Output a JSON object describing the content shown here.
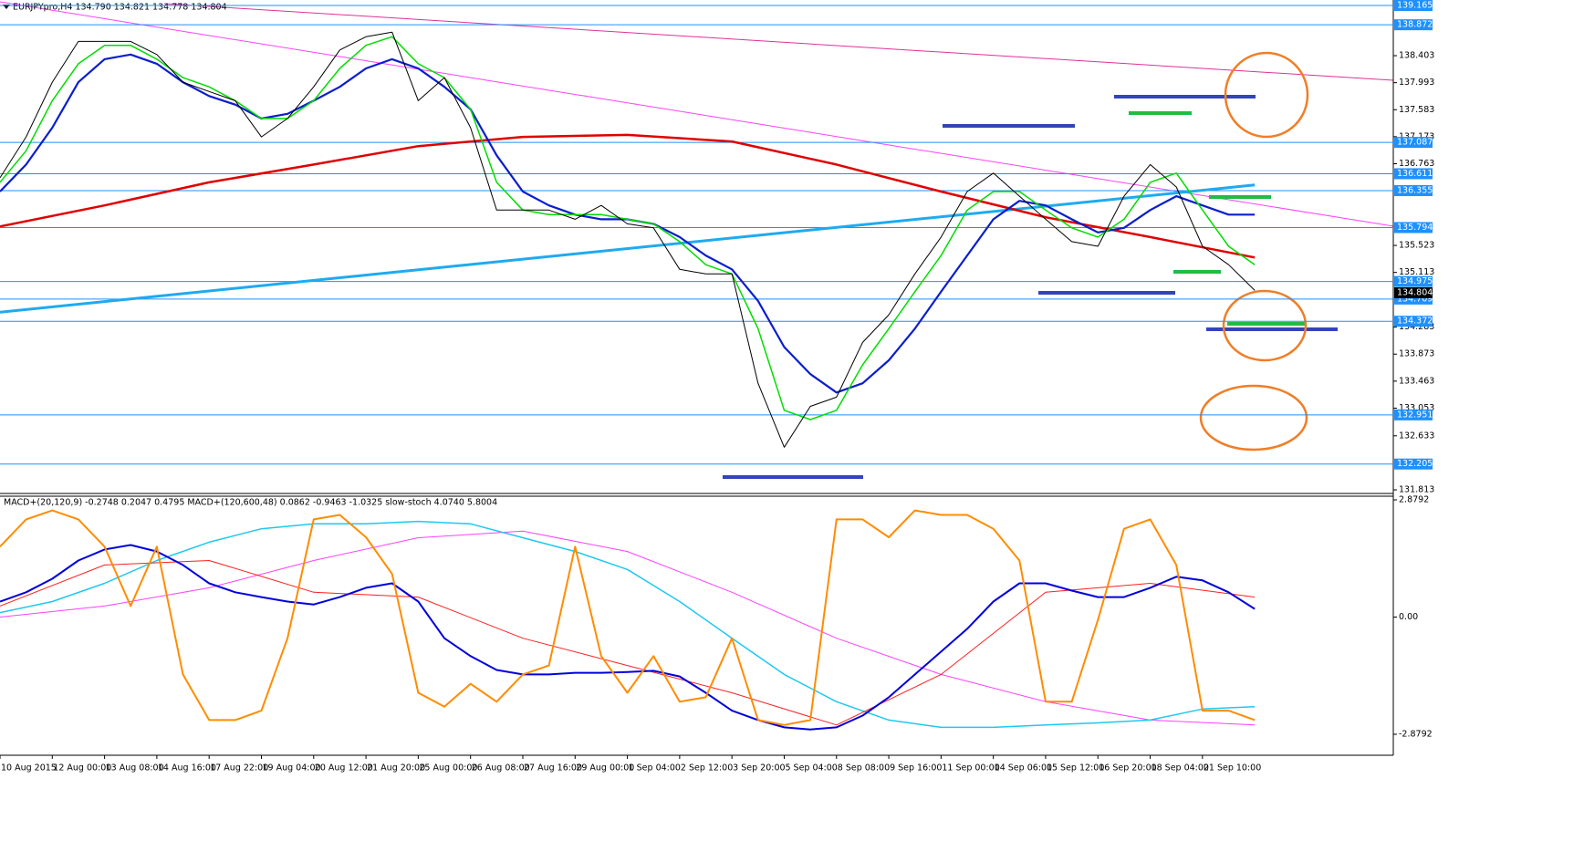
{
  "chart_data": [
    {
      "type": "line",
      "title": "EURJPYpro,H4  134.790 134.821 134.778 134.804",
      "xlim": [
        0,
        26.65
      ],
      "ylim": [
        131.758,
        139.248
      ],
      "yticks": [
        138.403,
        137.993,
        137.583,
        137.173,
        136.763,
        135.523,
        135.113,
        134.283,
        133.873,
        133.463,
        133.053,
        132.633,
        131.813
      ],
      "levels": {
        "color": "#1e90ff",
        "values": [
          139.165,
          138.872,
          137.087,
          136.611,
          136.355,
          135.794,
          134.975,
          134.709,
          134.372,
          132.951,
          132.205
        ]
      },
      "last_price": 134.804,
      "series": [
        {
          "color": "#1eaaf0",
          "x": [
            0,
            24
          ],
          "values": [
            134.51,
            136.44
          ]
        },
        {
          "color": "#e00000",
          "x": [
            0,
            2,
            4,
            6,
            8,
            10,
            12,
            14,
            16,
            18,
            20,
            22,
            24
          ],
          "values": [
            135.81,
            136.13,
            136.48,
            136.75,
            137.03,
            137.17,
            137.2,
            137.1,
            136.75,
            136.34,
            135.95,
            135.65,
            135.34
          ]
        },
        {
          "color": "#0a1ecc",
          "x": [
            0,
            0.5,
            1,
            1.5,
            2,
            2.5,
            3,
            3.5,
            4,
            4.5,
            5,
            5.5,
            6,
            6.5,
            7,
            7.5,
            8,
            8.5,
            9,
            9.5,
            10,
            10.5,
            11,
            11.5,
            12,
            12.5,
            13,
            13.5,
            14,
            14.5,
            15,
            15.5,
            16,
            16.5,
            17,
            17.5,
            18,
            18.5,
            19,
            19.5,
            20,
            20.5,
            21,
            21.5,
            22,
            22.5,
            23,
            23.5,
            24
          ],
          "values": [
            136.34,
            136.75,
            137.31,
            138.0,
            138.35,
            138.42,
            138.28,
            138.0,
            137.79,
            137.66,
            137.45,
            137.52,
            137.72,
            137.93,
            138.21,
            138.35,
            138.21,
            137.93,
            137.59,
            136.89,
            136.34,
            136.13,
            135.99,
            135.92,
            135.92,
            135.85,
            135.65,
            135.37,
            135.16,
            134.68,
            133.98,
            133.57,
            133.29,
            133.43,
            133.78,
            134.26,
            134.82,
            135.37,
            135.92,
            136.2,
            136.13,
            135.92,
            135.72,
            135.79,
            136.06,
            136.27,
            136.13,
            135.99,
            135.99
          ]
        },
        {
          "color": "#00dd00",
          "x": [
            0,
            0.5,
            1,
            1.5,
            2,
            2.5,
            3,
            3.5,
            4,
            4.5,
            5,
            5.5,
            6,
            6.5,
            7,
            7.5,
            8,
            8.5,
            9,
            9.5,
            10,
            10.5,
            11,
            11.5,
            12,
            12.5,
            13,
            13.5,
            14,
            14.5,
            15,
            15.5,
            16,
            16.5,
            17,
            17.5,
            18,
            18.5,
            19,
            19.5,
            20,
            20.5,
            21,
            21.5,
            22,
            22.5,
            23,
            23.5,
            24
          ],
          "values": [
            136.48,
            136.96,
            137.72,
            138.28,
            138.56,
            138.56,
            138.35,
            138.07,
            137.93,
            137.72,
            137.45,
            137.45,
            137.72,
            138.21,
            138.56,
            138.69,
            138.28,
            138.07,
            137.59,
            136.48,
            136.06,
            135.99,
            135.99,
            135.99,
            135.92,
            135.85,
            135.58,
            135.23,
            135.09,
            134.26,
            133.02,
            132.88,
            133.02,
            133.71,
            134.26,
            134.82,
            135.37,
            136.06,
            136.34,
            136.34,
            136.06,
            135.79,
            135.65,
            135.92,
            136.48,
            136.62,
            136.06,
            135.51,
            135.23
          ]
        },
        {
          "color": "#000000",
          "x": [
            0,
            0.5,
            1,
            1.5,
            2,
            2.5,
            3,
            3.5,
            4,
            4.5,
            5,
            5.5,
            6,
            6.5,
            7,
            7.5,
            8,
            8.5,
            9,
            9.5,
            10,
            10.5,
            11,
            11.5,
            12,
            12.5,
            13,
            13.5,
            14,
            14.5,
            15,
            15.5,
            16,
            16.5,
            17,
            17.5,
            18,
            18.5,
            19,
            19.5,
            20,
            20.5,
            21,
            21.5,
            22,
            22.5,
            23,
            23.5,
            24
          ],
          "values": [
            136.55,
            137.17,
            138.0,
            138.62,
            138.62,
            138.62,
            138.42,
            138.0,
            137.86,
            137.72,
            137.17,
            137.45,
            137.93,
            138.49,
            138.69,
            138.76,
            137.72,
            138.07,
            137.31,
            136.06,
            136.06,
            136.06,
            135.92,
            136.13,
            135.85,
            135.79,
            135.16,
            135.09,
            135.09,
            133.43,
            132.46,
            133.08,
            133.22,
            134.05,
            134.47,
            135.09,
            135.65,
            136.34,
            136.62,
            136.27,
            135.92,
            135.58,
            135.51,
            136.27,
            136.75,
            136.41,
            135.51,
            135.23,
            134.84
          ]
        }
      ]
    },
    {
      "type": "line",
      "title": "MACD+(20,120,9) -0.2748 0.2047 0.4795  MACD+(120,600,48) 0.0862 -0.9463 -1.0325  slow-stoch 4.0740 5.8004",
      "categories": [
        "10 Aug 2015",
        "12 Aug 00:00",
        "13 Aug 08:00",
        "14 Aug 16:00",
        "17 Aug 22:00",
        "19 Aug 04:00",
        "20 Aug 12:00",
        "21 Aug 20:00",
        "25 Aug 00:00",
        "26 Aug 08:00",
        "27 Aug 16:00",
        "29 Aug 00:00",
        "1 Sep 04:00",
        "2 Sep 12:00",
        "3 Sep 20:00",
        "5 Sep 04:00",
        "8 Sep 08:00",
        "9 Sep 16:00",
        "11 Sep 00:00",
        "14 Sep 06:00",
        "15 Sep 12:00",
        "16 Sep 20:00",
        "18 Sep 04:00",
        "21 Sep 10:00"
      ],
      "xlim": [
        0,
        26.65
      ],
      "ylim": [
        -3.395,
        2.969
      ],
      "yticks": [
        2.8792,
        {
          "value": 0,
          "label": "0.00"
        },
        -2.8792
      ],
      "series": [
        {
          "color": "#ff40ff",
          "x": [
            0,
            2,
            4,
            6,
            8,
            10,
            12,
            14,
            16,
            18,
            20,
            22,
            24
          ],
          "values": [
            0,
            0.27,
            0.72,
            1.39,
            1.95,
            2.11,
            1.61,
            0.61,
            -0.52,
            -1.41,
            -2.08,
            -2.53,
            -2.65
          ]
        },
        {
          "color": "#1ec8f0",
          "x": [
            0,
            1,
            2,
            3,
            4,
            5,
            6,
            7,
            8,
            9,
            10,
            11,
            12,
            13,
            14,
            15,
            16,
            17,
            18,
            19,
            20,
            21,
            22,
            23,
            24
          ],
          "values": [
            0.11,
            0.38,
            0.83,
            1.39,
            1.84,
            2.17,
            2.29,
            2.29,
            2.35,
            2.29,
            1.95,
            1.61,
            1.17,
            0.38,
            -0.52,
            -1.41,
            -2.08,
            -2.53,
            -2.71,
            -2.71,
            -2.65,
            -2.6,
            -2.53,
            -2.26,
            -2.2
          ]
        },
        {
          "color": "#ff2020",
          "x": [
            0,
            2,
            4,
            6,
            8,
            10,
            12,
            14,
            16,
            18,
            20,
            22,
            24
          ],
          "values": [
            0.27,
            1.28,
            1.39,
            0.61,
            0.49,
            -0.52,
            -1.19,
            -1.86,
            -2.65,
            -1.41,
            0.61,
            0.83,
            0.49
          ]
        },
        {
          "color": "#0000dd",
          "x": [
            0,
            0.5,
            1,
            1.5,
            2,
            2.5,
            3,
            3.5,
            4,
            4.5,
            5,
            5.5,
            6,
            6.5,
            7,
            7.5,
            8,
            8.5,
            9,
            9.5,
            10,
            10.5,
            11,
            11.5,
            12,
            12.5,
            13,
            13.5,
            14,
            14.5,
            15,
            15.5,
            16,
            16.5,
            17,
            17.5,
            18,
            18.5,
            19,
            19.5,
            20,
            20.5,
            21,
            21.5,
            22,
            22.5,
            23,
            23.5,
            24
          ],
          "values": [
            0.38,
            0.61,
            0.94,
            1.39,
            1.66,
            1.77,
            1.61,
            1.28,
            0.83,
            0.61,
            0.49,
            0.38,
            0.31,
            0.49,
            0.72,
            0.83,
            0.38,
            -0.52,
            -0.96,
            -1.3,
            -1.41,
            -1.41,
            -1.37,
            -1.37,
            -1.35,
            -1.32,
            -1.46,
            -1.86,
            -2.3,
            -2.53,
            -2.71,
            -2.76,
            -2.71,
            -2.42,
            -1.97,
            -1.41,
            -0.85,
            -0.29,
            0.38,
            0.83,
            0.83,
            0.65,
            0.49,
            0.49,
            0.72,
            0.99,
            0.9,
            0.61,
            0.2
          ]
        },
        {
          "color": "#ff8c00",
          "x": [
            0,
            0.5,
            1,
            1.5,
            2,
            2.5,
            3,
            3.5,
            4,
            4.5,
            5,
            5.5,
            6,
            6.5,
            7,
            7.5,
            8,
            8.5,
            9,
            9.5,
            10,
            10.5,
            11,
            11.5,
            12,
            12.5,
            13,
            13.5,
            14,
            14.5,
            15,
            15.5,
            16,
            16.5,
            17,
            17.5,
            18,
            18.5,
            19,
            19.5,
            20,
            20.5,
            21,
            21.5,
            22,
            22.5,
            23,
            23.5,
            24
          ],
          "values": [
            1.73,
            2.4,
            2.62,
            2.4,
            1.73,
            0.27,
            1.73,
            -1.41,
            -2.53,
            -2.53,
            -2.3,
            -0.52,
            2.4,
            2.51,
            1.96,
            1.06,
            -1.86,
            -2.2,
            -1.64,
            -2.08,
            -1.41,
            -1.19,
            1.73,
            -0.96,
            -1.86,
            -0.96,
            -2.08,
            -1.97,
            -0.52,
            -2.53,
            -2.65,
            -2.53,
            2.4,
            2.4,
            1.96,
            2.62,
            2.51,
            2.51,
            2.17,
            1.39,
            -2.08,
            -2.08,
            -0.07,
            2.17,
            2.4,
            1.28,
            -2.3,
            -2.3,
            -2.53
          ]
        }
      ]
    }
  ]
}
